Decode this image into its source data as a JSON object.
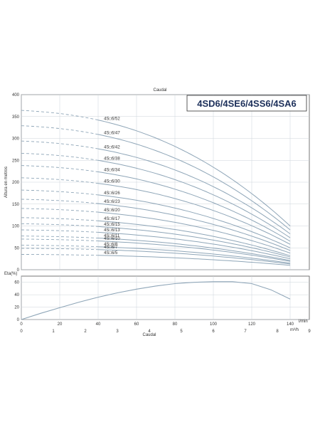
{
  "chart_data": [
    {
      "type": "line",
      "title": "Caudal",
      "model_label": "4SD6/4SE6/4SS6/4SA6",
      "ylabel": "Altura en metros",
      "xlim": [
        0,
        150
      ],
      "ylim": [
        0,
        400
      ],
      "x_ticks": [
        0,
        20,
        40,
        60,
        80,
        100,
        120,
        140
      ],
      "y_ticks": [
        0,
        50,
        100,
        150,
        200,
        250,
        300,
        350,
        400
      ],
      "x_ticks_m3h": [
        0,
        1,
        2,
        3,
        4,
        5,
        6,
        7,
        8,
        9
      ],
      "unit_lmin": "l/min",
      "unit_m3h": "m³/h",
      "grid": true,
      "line_color": "#8fa6b8",
      "dashed_segment_until_x": 40,
      "series": [
        {
          "name": "4S□6/52",
          "shutoff": 364,
          "at_140": 100
        },
        {
          "name": "4S□6/47",
          "shutoff": 329,
          "at_140": 91
        },
        {
          "name": "4S□6/42",
          "shutoff": 294,
          "at_140": 82
        },
        {
          "name": "4S□6/38",
          "shutoff": 266,
          "at_140": 73
        },
        {
          "name": "4S□6/34",
          "shutoff": 238,
          "at_140": 65
        },
        {
          "name": "4S□6/30",
          "shutoff": 210,
          "at_140": 58
        },
        {
          "name": "4S□6/26",
          "shutoff": 182,
          "at_140": 50
        },
        {
          "name": "4S□6/23",
          "shutoff": 161,
          "at_140": 44
        },
        {
          "name": "4S□6/20",
          "shutoff": 140,
          "at_140": 38
        },
        {
          "name": "4S□6/17",
          "shutoff": 119,
          "at_140": 32
        },
        {
          "name": "4S□6/15",
          "shutoff": 105,
          "at_140": 29
        },
        {
          "name": "4S□6/13",
          "shutoff": 91,
          "at_140": 25
        },
        {
          "name": "4S□6/11",
          "shutoff": 77,
          "at_140": 21
        },
        {
          "name": "4S□6/10",
          "shutoff": 70,
          "at_140": 19
        },
        {
          "name": "4S□6/8",
          "shutoff": 56,
          "at_140": 15
        },
        {
          "name": "4S□6/7",
          "shutoff": 49,
          "at_140": 13
        },
        {
          "name": "4S□6/5",
          "shutoff": 35,
          "at_140": 10
        }
      ]
    },
    {
      "type": "line",
      "ylabel": "Eta(%)",
      "xlabel": "Caudal",
      "xlim": [
        0,
        150
      ],
      "ylim": [
        0,
        70
      ],
      "y_ticks": [
        0,
        20,
        40,
        60
      ],
      "x_ticks": [
        0,
        20,
        40,
        60,
        80,
        100,
        120,
        140
      ],
      "x_ticks_m3h": [
        0,
        1,
        2,
        3,
        4,
        5,
        6,
        7,
        8,
        9
      ],
      "unit_lmin": "l/min",
      "unit_m3h": "m³/h",
      "grid": true,
      "line_color": "#8fa6b8",
      "series": [
        {
          "x": [
            0,
            10,
            20,
            30,
            40,
            50,
            60,
            70,
            80,
            90,
            100,
            110,
            120,
            130,
            140
          ],
          "y": [
            0,
            10,
            19,
            28,
            36,
            43,
            49,
            54,
            58,
            60,
            61,
            61,
            58,
            48,
            33
          ]
        }
      ]
    }
  ]
}
